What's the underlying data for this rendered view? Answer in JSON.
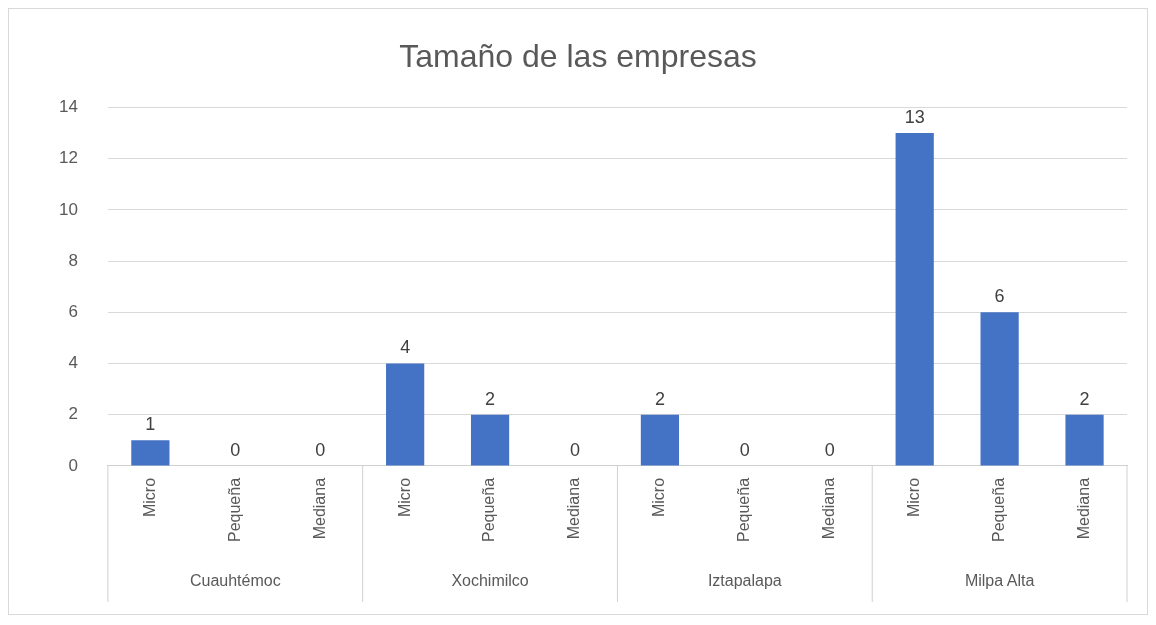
{
  "chart_data": {
    "type": "bar",
    "title": "Tamaño de las empresas",
    "categories": [
      "Micro",
      "Pequeña",
      "Mediana",
      "Micro",
      "Pequeña",
      "Mediana",
      "Micro",
      "Pequeña",
      "Mediana",
      "Micro",
      "Pequeña",
      "Mediana"
    ],
    "values": [
      1,
      0,
      0,
      4,
      2,
      0,
      2,
      0,
      0,
      13,
      6,
      2
    ],
    "color": "#4472c4",
    "ylim": [
      0,
      14
    ],
    "yticks": [
      0,
      2,
      4,
      6,
      8,
      10,
      12,
      14
    ],
    "grid": "y",
    "data_labels": true,
    "legend": false,
    "annotations": [
      "Cuauhtémoc",
      "Xochimilco",
      "Iztapalapa",
      "Milpa Alta"
    ]
  }
}
